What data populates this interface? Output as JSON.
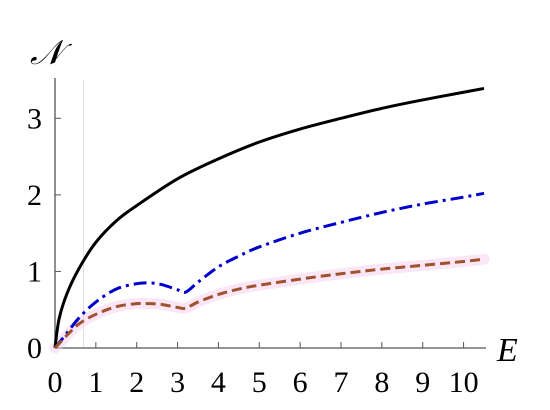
{
  "chart_data": {
    "type": "line",
    "xlabel": "E",
    "ylabel": "𝒩",
    "xlim": [
      0,
      10.5
    ],
    "ylim": [
      0,
      3.5
    ],
    "xticks": [
      "0",
      "1",
      "2",
      "3",
      "4",
      "5",
      "6",
      "7",
      "8",
      "9",
      "10"
    ],
    "yticks": [
      "0",
      "1",
      "2",
      "3"
    ],
    "grid": false,
    "legend": "none",
    "vertical_guide_x": 0.7,
    "series": [
      {
        "color": "#000000",
        "style": "solid",
        "x": [
          0,
          0.1,
          0.3,
          0.6,
          1.0,
          1.5,
          2.0,
          3.0,
          4.0,
          5.0,
          6.0,
          7.0,
          8.0,
          9.0,
          10.0,
          10.5
        ],
        "y": [
          0,
          0.38,
          0.72,
          1.05,
          1.38,
          1.66,
          1.86,
          2.21,
          2.47,
          2.69,
          2.86,
          3.0,
          3.13,
          3.24,
          3.34,
          3.39
        ]
      },
      {
        "color": "#0000cc",
        "style": "dashdot",
        "x": [
          0,
          0.3,
          0.6,
          1.0,
          1.5,
          2.0,
          2.3,
          2.6,
          3.0,
          3.2,
          3.5,
          4.0,
          4.5,
          5.0,
          6.0,
          7.0,
          8.0,
          9.0,
          10.0,
          10.5
        ],
        "y": [
          0,
          0.2,
          0.4,
          0.6,
          0.77,
          0.84,
          0.85,
          0.83,
          0.76,
          0.73,
          0.86,
          1.06,
          1.2,
          1.32,
          1.5,
          1.64,
          1.77,
          1.88,
          1.97,
          2.02
        ]
      },
      {
        "color": "#a0522d",
        "style": "dashed",
        "x": [
          0,
          0.3,
          0.6,
          1.0,
          1.5,
          2.0,
          2.3,
          2.6,
          3.0,
          3.2,
          3.5,
          4.0,
          4.5,
          5.0,
          6.0,
          7.0,
          8.0,
          9.0,
          10.0,
          10.5
        ],
        "y": [
          0,
          0.17,
          0.32,
          0.44,
          0.54,
          0.58,
          0.58,
          0.57,
          0.53,
          0.52,
          0.6,
          0.7,
          0.77,
          0.82,
          0.9,
          0.97,
          1.03,
          1.08,
          1.13,
          1.16
        ]
      }
    ]
  }
}
